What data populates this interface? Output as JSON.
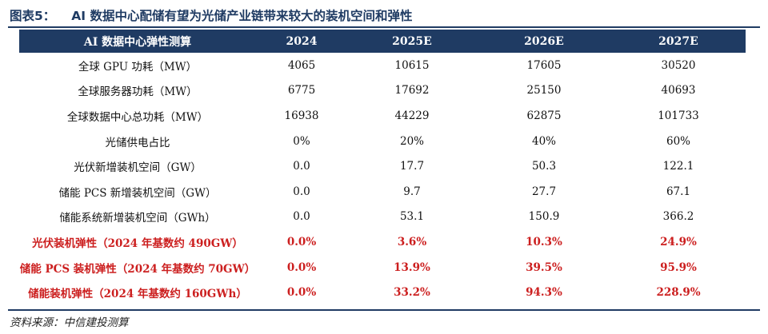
{
  "figure": {
    "label": "图表5：",
    "title": "AI 数据中心配储有望为光储产业链带来较大的装机空间和弹性"
  },
  "table": {
    "headers": [
      "AI 数据中心弹性测算",
      "2024",
      "2025E",
      "2026E",
      "2027E"
    ],
    "rows": [
      {
        "label": "全球 GPU 功耗（MW）",
        "values": [
          "4065",
          "10615",
          "17605",
          "30520"
        ],
        "highlight": false
      },
      {
        "label": "全球服务器功耗（MW）",
        "values": [
          "6775",
          "17692",
          "25150",
          "40693"
        ],
        "highlight": false
      },
      {
        "label": "全球数据中心总功耗（MW）",
        "values": [
          "16938",
          "44229",
          "62875",
          "101733"
        ],
        "highlight": false
      },
      {
        "label": "光储供电占比",
        "values": [
          "0%",
          "20%",
          "40%",
          "60%"
        ],
        "highlight": false
      },
      {
        "label": "光伏新增装机空间（GW）",
        "values": [
          "0.0",
          "17.7",
          "50.3",
          "122.1"
        ],
        "highlight": false
      },
      {
        "label": "储能 PCS 新增装机空间（GW）",
        "values": [
          "0.0",
          "9.7",
          "27.7",
          "67.1"
        ],
        "highlight": false
      },
      {
        "label": "储能系统新增装机空间（GWh）",
        "values": [
          "0.0",
          "53.1",
          "150.9",
          "366.2"
        ],
        "highlight": false
      },
      {
        "label": "光伏装机弹性（2024 年基数约 490GW）",
        "values": [
          "0.0%",
          "3.6%",
          "10.3%",
          "24.9%"
        ],
        "highlight": true
      },
      {
        "label": "储能 PCS 装机弹性（2024 年基数约 70GW）",
        "values": [
          "0.0%",
          "13.9%",
          "39.5%",
          "95.9%"
        ],
        "highlight": true
      },
      {
        "label": "储能装机弹性（2024 年基数约 160GWh）",
        "values": [
          "0.0%",
          "33.2%",
          "94.3%",
          "228.9%"
        ],
        "highlight": true
      }
    ]
  },
  "source": "资料来源：中信建投测算",
  "colors": {
    "header_bg": "#1f3b63",
    "highlight_text": "#cc1f1f"
  }
}
